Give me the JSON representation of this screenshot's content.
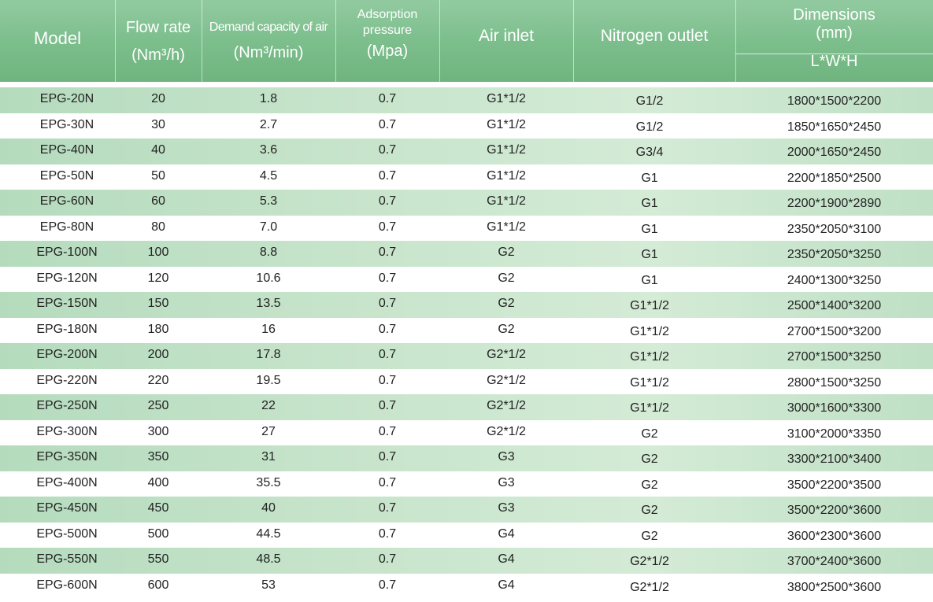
{
  "colors": {
    "header_bg": "#7bbd8b",
    "header_text": "#ffffff",
    "stripe_green": "#c8e5cc",
    "stripe_white": "#ffffff",
    "body_text": "#222222"
  },
  "header": {
    "model": "Model",
    "flow_rate": "Flow rate",
    "flow_rate_unit": "(Nm³/h)",
    "demand": "Demand capacity of air",
    "demand_unit": "(Nm³/min)",
    "pressure_line1": "Adsorption",
    "pressure_line2": "pressure",
    "pressure_unit": "(Mpa)",
    "air_inlet": "Air inlet",
    "nitrogen_outlet": "Nitrogen outlet",
    "dimensions": "Dimensions",
    "dimensions_unit": "(mm)",
    "dimensions_sub": "L*W*H"
  },
  "rows": [
    {
      "model": "EPG-20N",
      "flow": "20",
      "demand": "1.8",
      "pressure": "0.7",
      "inlet": "G1*1/2",
      "outlet": "G1/2",
      "dims": "1800*1500*2200"
    },
    {
      "model": "EPG-30N",
      "flow": "30",
      "demand": "2.7",
      "pressure": "0.7",
      "inlet": "G1*1/2",
      "outlet": "G1/2",
      "dims": "1850*1650*2450"
    },
    {
      "model": "EPG-40N",
      "flow": "40",
      "demand": "3.6",
      "pressure": "0.7",
      "inlet": "G1*1/2",
      "outlet": "G3/4",
      "dims": "2000*1650*2450"
    },
    {
      "model": "EPG-50N",
      "flow": "50",
      "demand": "4.5",
      "pressure": "0.7",
      "inlet": "G1*1/2",
      "outlet": "G1",
      "dims": "2200*1850*2500"
    },
    {
      "model": "EPG-60N",
      "flow": "60",
      "demand": "5.3",
      "pressure": "0.7",
      "inlet": "G1*1/2",
      "outlet": "G1",
      "dims": "2200*1900*2890"
    },
    {
      "model": "EPG-80N",
      "flow": "80",
      "demand": "7.0",
      "pressure": "0.7",
      "inlet": "G1*1/2",
      "outlet": "G1",
      "dims": "2350*2050*3100"
    },
    {
      "model": "EPG-100N",
      "flow": "100",
      "demand": "8.8",
      "pressure": "0.7",
      "inlet": "G2",
      "outlet": "G1",
      "dims": "2350*2050*3250"
    },
    {
      "model": "EPG-120N",
      "flow": "120",
      "demand": "10.6",
      "pressure": "0.7",
      "inlet": "G2",
      "outlet": "G1",
      "dims": "2400*1300*3250"
    },
    {
      "model": "EPG-150N",
      "flow": "150",
      "demand": "13.5",
      "pressure": "0.7",
      "inlet": "G2",
      "outlet": "G1*1/2",
      "dims": "2500*1400*3200"
    },
    {
      "model": "EPG-180N",
      "flow": "180",
      "demand": "16",
      "pressure": "0.7",
      "inlet": "G2",
      "outlet": "G1*1/2",
      "dims": "2700*1500*3200"
    },
    {
      "model": "EPG-200N",
      "flow": "200",
      "demand": "17.8",
      "pressure": "0.7",
      "inlet": "G2*1/2",
      "outlet": "G1*1/2",
      "dims": "2700*1500*3250"
    },
    {
      "model": "EPG-220N",
      "flow": "220",
      "demand": "19.5",
      "pressure": "0.7",
      "inlet": "G2*1/2",
      "outlet": "G1*1/2",
      "dims": "2800*1500*3250"
    },
    {
      "model": "EPG-250N",
      "flow": "250",
      "demand": "22",
      "pressure": "0.7",
      "inlet": "G2*1/2",
      "outlet": "G1*1/2",
      "dims": "3000*1600*3300"
    },
    {
      "model": "EPG-300N",
      "flow": "300",
      "demand": "27",
      "pressure": "0.7",
      "inlet": "G2*1/2",
      "outlet": "G2",
      "dims": "3100*2000*3350"
    },
    {
      "model": "EPG-350N",
      "flow": "350",
      "demand": "31",
      "pressure": "0.7",
      "inlet": "G3",
      "outlet": "G2",
      "dims": "3300*2100*3400"
    },
    {
      "model": "EPG-400N",
      "flow": "400",
      "demand": "35.5",
      "pressure": "0.7",
      "inlet": "G3",
      "outlet": "G2",
      "dims": "3500*2200*3500"
    },
    {
      "model": "EPG-450N",
      "flow": "450",
      "demand": "40",
      "pressure": "0.7",
      "inlet": "G3",
      "outlet": "G2",
      "dims": "3500*2200*3600"
    },
    {
      "model": "EPG-500N",
      "flow": "500",
      "demand": "44.5",
      "pressure": "0.7",
      "inlet": "G4",
      "outlet": "G2",
      "dims": "3600*2300*3600"
    },
    {
      "model": "EPG-550N",
      "flow": "550",
      "demand": "48.5",
      "pressure": "0.7",
      "inlet": "G4",
      "outlet": "G2*1/2",
      "dims": "3700*2400*3600"
    },
    {
      "model": "EPG-600N",
      "flow": "600",
      "demand": "53",
      "pressure": "0.7",
      "inlet": "G4",
      "outlet": "G2*1/2",
      "dims": "3800*2500*3600"
    }
  ]
}
